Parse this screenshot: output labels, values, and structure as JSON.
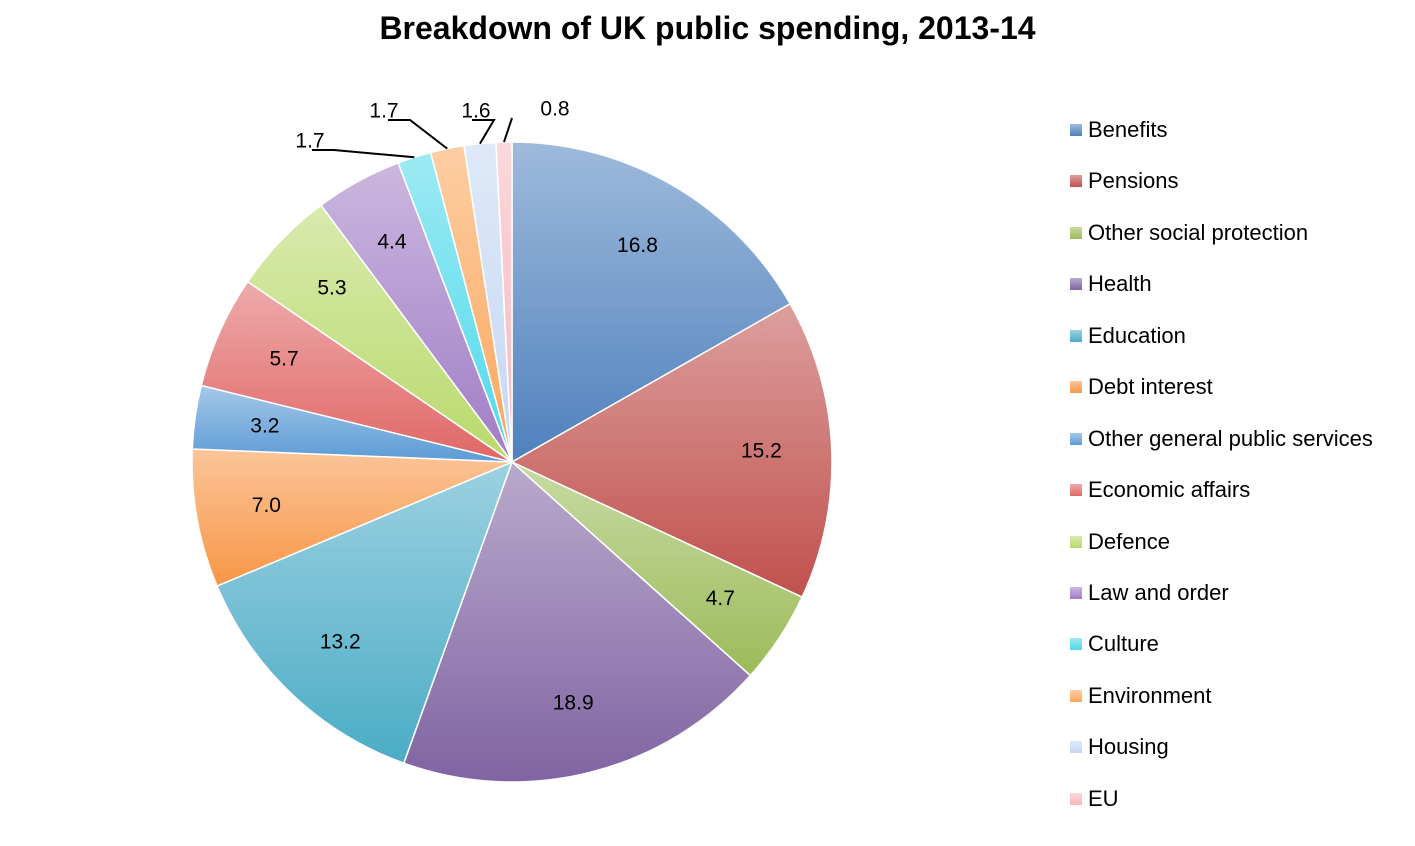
{
  "chart_data": {
    "type": "pie",
    "title": "Breakdown of UK public spending, 2013-14",
    "legend_position": "right",
    "slices": [
      {
        "name": "Benefits",
        "value": 16.8,
        "label": "16.8",
        "color": "#4f81bd"
      },
      {
        "name": "Pensions",
        "value": 15.2,
        "label": "15.2",
        "color": "#c0504d"
      },
      {
        "name": "Other social protection",
        "value": 4.7,
        "label": "4.7",
        "color": "#9bbb59"
      },
      {
        "name": "Health",
        "value": 18.9,
        "label": "18.9",
        "color": "#8064a2"
      },
      {
        "name": "Education",
        "value": 13.2,
        "label": "13.2",
        "color": "#4bacc6"
      },
      {
        "name": "Debt interest",
        "value": 7.0,
        "label": "7.0",
        "color": "#f79646"
      },
      {
        "name": "Other general public services",
        "value": 3.2,
        "label": "3.2",
        "color": "#5b9bd5"
      },
      {
        "name": "Economic affairs",
        "value": 5.7,
        "label": "5.7",
        "color": "#e06666"
      },
      {
        "name": "Defence",
        "value": 5.3,
        "label": "5.3",
        "color": "#b9d96b"
      },
      {
        "name": "Law and order",
        "value": 4.4,
        "label": "4.4",
        "color": "#a07cc5"
      },
      {
        "name": "Culture",
        "value": 1.7,
        "label": "1.7",
        "color": "#4dd9ea"
      },
      {
        "name": "Environment",
        "value": 1.7,
        "label": "1.7",
        "color": "#fba65a"
      },
      {
        "name": "Housing",
        "value": 1.6,
        "label": "1.6",
        "color": "#c5d7f3"
      },
      {
        "name": "EU",
        "value": 0.8,
        "label": "0.8",
        "color": "#f5b8bc"
      }
    ]
  }
}
